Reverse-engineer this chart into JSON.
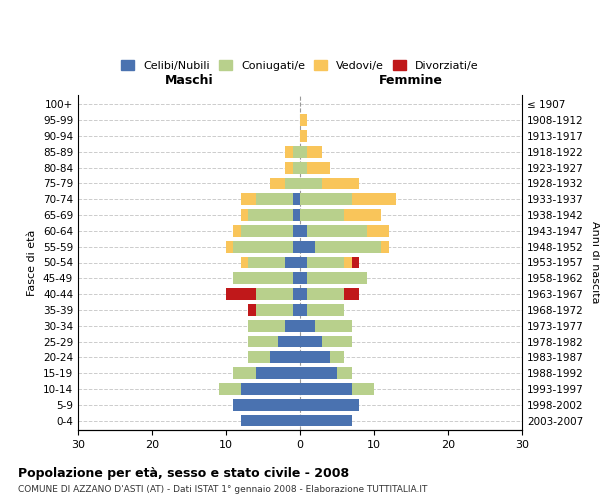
{
  "age_groups": [
    "100+",
    "95-99",
    "90-94",
    "85-89",
    "80-84",
    "75-79",
    "70-74",
    "65-69",
    "60-64",
    "55-59",
    "50-54",
    "45-49",
    "40-44",
    "35-39",
    "30-34",
    "25-29",
    "20-24",
    "15-19",
    "10-14",
    "5-9",
    "0-4"
  ],
  "year_labels": [
    "≤ 1907",
    "1908-1912",
    "1913-1917",
    "1918-1922",
    "1923-1927",
    "1928-1932",
    "1933-1937",
    "1938-1942",
    "1943-1947",
    "1948-1952",
    "1953-1957",
    "1958-1962",
    "1963-1967",
    "1968-1972",
    "1973-1977",
    "1978-1982",
    "1983-1987",
    "1988-1992",
    "1993-1997",
    "1998-2002",
    "2003-2007"
  ],
  "males": {
    "celibi": [
      0,
      0,
      0,
      0,
      0,
      0,
      1,
      1,
      1,
      1,
      2,
      1,
      1,
      1,
      2,
      3,
      4,
      6,
      8,
      9,
      8
    ],
    "coniugati": [
      0,
      0,
      0,
      1,
      1,
      2,
      5,
      6,
      7,
      8,
      5,
      8,
      5,
      5,
      5,
      4,
      3,
      3,
      3,
      0,
      0
    ],
    "vedovi": [
      0,
      0,
      0,
      1,
      1,
      2,
      2,
      1,
      1,
      1,
      1,
      0,
      0,
      0,
      0,
      0,
      0,
      0,
      0,
      0,
      0
    ],
    "divorziati": [
      0,
      0,
      0,
      0,
      0,
      0,
      0,
      0,
      0,
      0,
      0,
      0,
      4,
      1,
      0,
      0,
      0,
      0,
      0,
      0,
      0
    ]
  },
  "females": {
    "nubili": [
      0,
      0,
      0,
      0,
      0,
      0,
      0,
      0,
      1,
      2,
      1,
      1,
      1,
      1,
      2,
      3,
      4,
      5,
      7,
      8,
      7
    ],
    "coniugate": [
      0,
      0,
      0,
      1,
      1,
      3,
      7,
      6,
      8,
      9,
      5,
      8,
      5,
      5,
      5,
      4,
      2,
      2,
      3,
      0,
      0
    ],
    "vedove": [
      0,
      1,
      1,
      2,
      3,
      5,
      6,
      5,
      3,
      1,
      1,
      0,
      0,
      0,
      0,
      0,
      0,
      0,
      0,
      0,
      0
    ],
    "divorziate": [
      0,
      0,
      0,
      0,
      0,
      0,
      0,
      0,
      0,
      0,
      1,
      0,
      2,
      0,
      0,
      0,
      0,
      0,
      0,
      0,
      0
    ]
  },
  "colors": {
    "celibi": "#4A72B0",
    "coniugati": "#B8D08C",
    "vedovi": "#F9C55A",
    "divorziati": "#C0181A"
  },
  "xlim": 30,
  "title": "Popolazione per età, sesso e stato civile - 2008",
  "subtitle": "COMUNE DI AZZANO D'ASTI (AT) - Dati ISTAT 1° gennaio 2008 - Elaborazione TUTTITALIA.IT",
  "xlabel_left": "Maschi",
  "xlabel_right": "Femmine",
  "ylabel": "Fasce di età",
  "ylabel_right": "Anni di nascita",
  "legend_labels": [
    "Celibi/Nubili",
    "Coniugati/e",
    "Vedovi/e",
    "Divorziati/e"
  ],
  "background_color": "#FFFFFF",
  "grid_color": "#CCCCCC"
}
